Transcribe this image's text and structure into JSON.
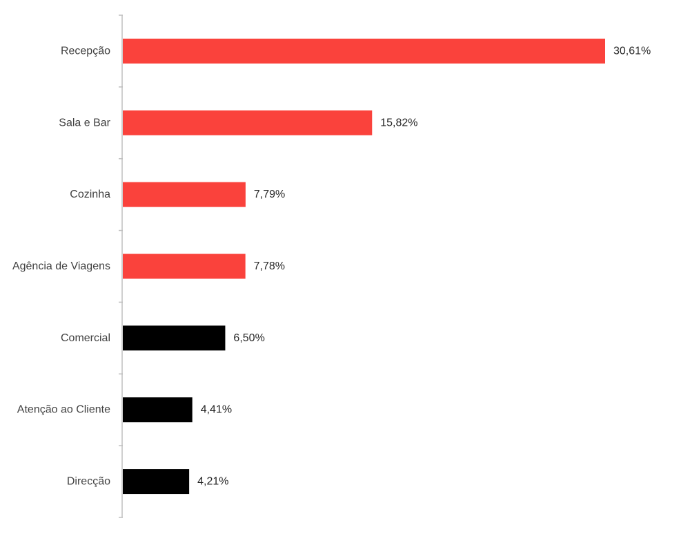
{
  "chart_data": {
    "type": "bar",
    "orientation": "horizontal",
    "categories": [
      "Recepção",
      "Sala e Bar",
      "Cozinha",
      "Agência de Viagens",
      "Comercial",
      "Atenção ao Cliente",
      "Direcção"
    ],
    "values": [
      30.61,
      15.82,
      7.79,
      7.78,
      6.5,
      4.41,
      4.21
    ],
    "value_labels": [
      "30,61%",
      "15,82%",
      "7,79%",
      "7,78%",
      "6,50%",
      "4,41%",
      "4,21%"
    ],
    "bar_colors": [
      "#fa423c",
      "#fa423c",
      "#fa423c",
      "#fa423c",
      "#000000",
      "#000000",
      "#000000"
    ],
    "title": "",
    "xlabel": "",
    "ylabel": "",
    "xlim": [
      0,
      32
    ],
    "grid": false,
    "legend": "none"
  }
}
